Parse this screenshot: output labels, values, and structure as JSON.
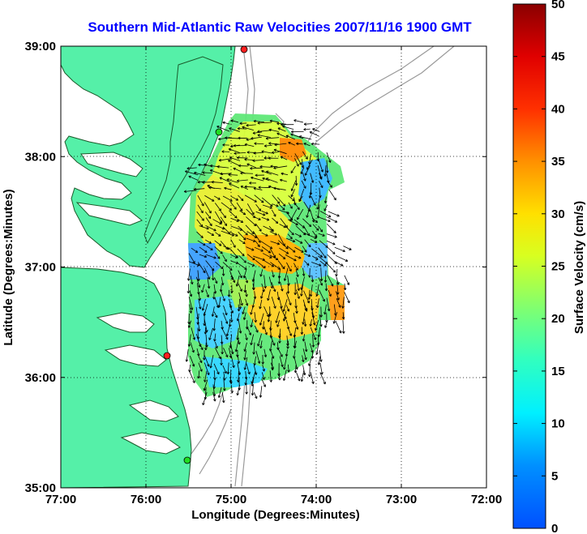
{
  "title": "Southern Mid-Atlantic Raw Velocities 2007/11/16 1900 GMT",
  "xlabel": "Longitude (Degrees:Minutes)",
  "ylabel": "Latitude (Degrees:Minutes)",
  "x_ticks": [
    "77:00",
    "76:00",
    "75:00",
    "74:00",
    "73:00",
    "72:00"
  ],
  "y_ticks": [
    "39:00",
    "38:00",
    "37:00",
    "36:00",
    "35:00"
  ],
  "colorbar": {
    "label": "Surface Velocity (cm/s)",
    "ticks": [
      "50",
      "45",
      "40",
      "35",
      "30",
      "25",
      "20",
      "15",
      "10",
      "5",
      "0"
    ]
  },
  "colors": {
    "land": "#55f0a8",
    "title": "#0000ff",
    "bathymetry": "#999999"
  },
  "stations": [
    {
      "name": "station-north",
      "color": "#ff2020"
    },
    {
      "name": "station-delmarva",
      "color": "#20dd20"
    },
    {
      "name": "station-virginia-beach",
      "color": "#ff2020"
    },
    {
      "name": "station-outer-banks",
      "color": "#20dd20"
    }
  ]
}
